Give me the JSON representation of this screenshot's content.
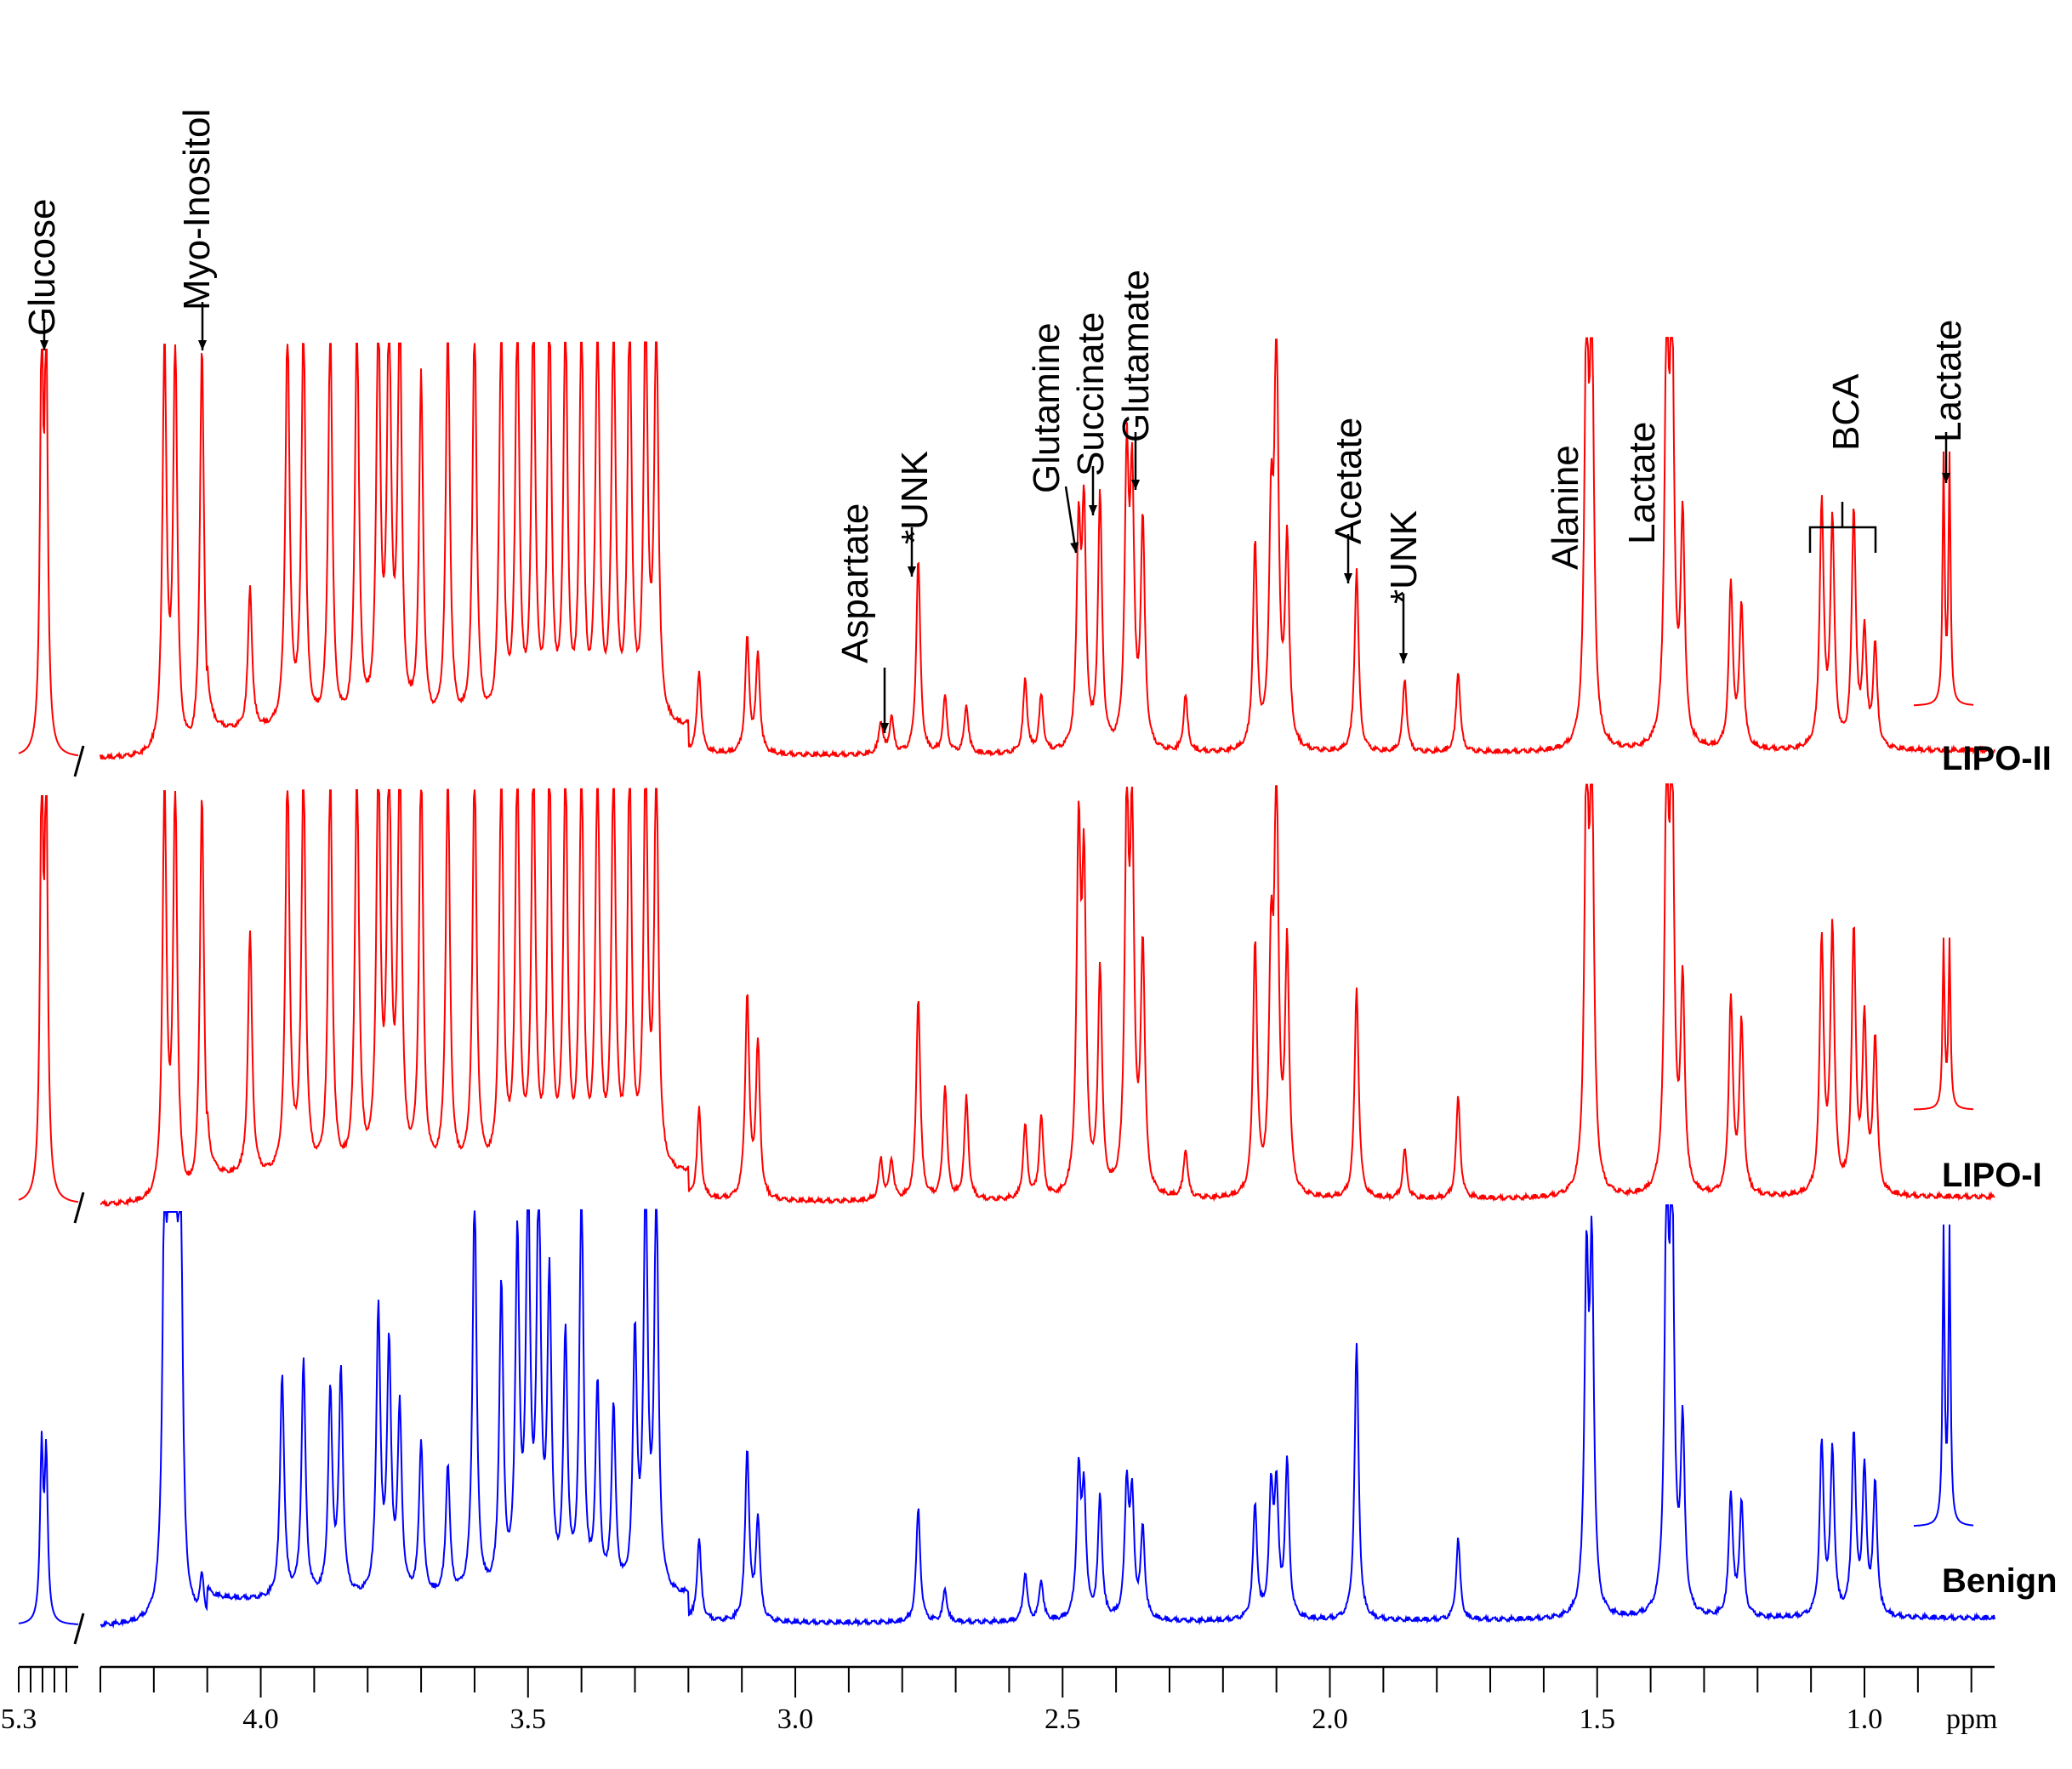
{
  "chart_data": {
    "type": "line",
    "title": "",
    "xlabel": "ppm",
    "ylabel": "",
    "xlim": [
      5.3,
      0.7
    ],
    "x_reversed": true,
    "axis_break": [
      5.3,
      4.3
    ],
    "grid": false,
    "colors": {
      "LIPO-II": "#ff0000",
      "LIPO-I": "#ff0000",
      "Benign": "#0000ff",
      "axis": "#000000"
    },
    "tick_labels": [
      "5.3",
      "4.0",
      "3.5",
      "3.0",
      "2.5",
      "2.0",
      "1.5",
      "1.0"
    ],
    "tick_values": [
      5.3,
      4.0,
      3.5,
      3.0,
      2.5,
      2.0,
      1.5,
      1.0
    ],
    "series": [
      {
        "name": "LIPO-II",
        "baseline": 0.02,
        "values_note": "",
        "peaks": [
          {
            "x": 5.25,
            "y": 1.0
          },
          {
            "x": 5.24,
            "y": 1.0
          },
          {
            "x": 4.18,
            "y": 1.0
          },
          {
            "x": 4.16,
            "y": 1.0
          },
          {
            "x": 4.11,
            "y": 1.0
          },
          {
            "x": 4.02,
            "y": 0.35
          },
          {
            "x": 3.95,
            "y": 1.0
          },
          {
            "x": 3.92,
            "y": 1.0
          },
          {
            "x": 3.87,
            "y": 1.0
          },
          {
            "x": 3.82,
            "y": 1.0
          },
          {
            "x": 3.78,
            "y": 1.0
          },
          {
            "x": 3.76,
            "y": 1.0
          },
          {
            "x": 3.74,
            "y": 1.0
          },
          {
            "x": 3.7,
            "y": 0.85
          },
          {
            "x": 3.65,
            "y": 1.0
          },
          {
            "x": 3.6,
            "y": 1.0
          },
          {
            "x": 3.55,
            "y": 1.0
          },
          {
            "x": 3.52,
            "y": 1.0
          },
          {
            "x": 3.49,
            "y": 1.0
          },
          {
            "x": 3.46,
            "y": 1.0
          },
          {
            "x": 3.43,
            "y": 1.0
          },
          {
            "x": 3.4,
            "y": 1.0
          },
          {
            "x": 3.37,
            "y": 1.0
          },
          {
            "x": 3.34,
            "y": 1.0
          },
          {
            "x": 3.31,
            "y": 1.0
          },
          {
            "x": 3.28,
            "y": 1.0
          },
          {
            "x": 3.26,
            "y": 1.0
          },
          {
            "x": 3.18,
            "y": 0.2
          },
          {
            "x": 3.09,
            "y": 0.28
          },
          {
            "x": 3.07,
            "y": 0.24
          },
          {
            "x": 2.84,
            "y": 0.08
          },
          {
            "x": 2.82,
            "y": 0.09
          },
          {
            "x": 2.77,
            "y": 0.48
          },
          {
            "x": 2.72,
            "y": 0.14
          },
          {
            "x": 2.68,
            "y": 0.12
          },
          {
            "x": 2.57,
            "y": 0.18
          },
          {
            "x": 2.54,
            "y": 0.14
          },
          {
            "x": 2.47,
            "y": 0.52
          },
          {
            "x": 2.46,
            "y": 0.56
          },
          {
            "x": 2.43,
            "y": 0.62
          },
          {
            "x": 2.38,
            "y": 0.68
          },
          {
            "x": 2.37,
            "y": 0.62
          },
          {
            "x": 2.35,
            "y": 0.55
          },
          {
            "x": 2.27,
            "y": 0.14
          },
          {
            "x": 2.14,
            "y": 0.5
          },
          {
            "x": 2.11,
            "y": 0.52
          },
          {
            "x": 2.1,
            "y": 1.0
          },
          {
            "x": 2.08,
            "y": 0.5
          },
          {
            "x": 1.95,
            "y": 0.45
          },
          {
            "x": 1.86,
            "y": 0.18
          },
          {
            "x": 1.76,
            "y": 0.2
          },
          {
            "x": 1.52,
            "y": 1.0
          },
          {
            "x": 1.51,
            "y": 1.0
          },
          {
            "x": 1.37,
            "y": 1.0
          },
          {
            "x": 1.36,
            "y": 1.0
          },
          {
            "x": 1.34,
            "y": 0.55
          },
          {
            "x": 1.25,
            "y": 0.4
          },
          {
            "x": 1.23,
            "y": 0.35
          },
          {
            "x": 1.08,
            "y": 0.6
          },
          {
            "x": 1.06,
            "y": 0.55
          },
          {
            "x": 1.02,
            "y": 0.58
          },
          {
            "x": 1.0,
            "y": 0.28
          },
          {
            "x": 0.98,
            "y": 0.25
          },
          {
            "x": 0.85,
            "y": 0.72
          },
          {
            "x": 0.84,
            "y": 0.72
          }
        ]
      },
      {
        "name": "LIPO-I",
        "baseline": 0.02,
        "peaks": [
          {
            "x": 5.25,
            "y": 1.0
          },
          {
            "x": 5.24,
            "y": 1.0
          },
          {
            "x": 4.18,
            "y": 1.0
          },
          {
            "x": 4.16,
            "y": 1.0
          },
          {
            "x": 4.11,
            "y": 1.0
          },
          {
            "x": 4.02,
            "y": 0.6
          },
          {
            "x": 3.95,
            "y": 1.0
          },
          {
            "x": 3.92,
            "y": 1.0
          },
          {
            "x": 3.87,
            "y": 1.0
          },
          {
            "x": 3.82,
            "y": 1.0
          },
          {
            "x": 3.78,
            "y": 1.0
          },
          {
            "x": 3.76,
            "y": 1.0
          },
          {
            "x": 3.74,
            "y": 1.0
          },
          {
            "x": 3.7,
            "y": 1.0
          },
          {
            "x": 3.65,
            "y": 1.0
          },
          {
            "x": 3.6,
            "y": 1.0
          },
          {
            "x": 3.55,
            "y": 1.0
          },
          {
            "x": 3.52,
            "y": 1.0
          },
          {
            "x": 3.49,
            "y": 1.0
          },
          {
            "x": 3.46,
            "y": 1.0
          },
          {
            "x": 3.43,
            "y": 1.0
          },
          {
            "x": 3.4,
            "y": 1.0
          },
          {
            "x": 3.37,
            "y": 1.0
          },
          {
            "x": 3.34,
            "y": 1.0
          },
          {
            "x": 3.31,
            "y": 1.0
          },
          {
            "x": 3.28,
            "y": 1.0
          },
          {
            "x": 3.26,
            "y": 1.0
          },
          {
            "x": 3.18,
            "y": 0.22
          },
          {
            "x": 3.09,
            "y": 0.5
          },
          {
            "x": 3.07,
            "y": 0.38
          },
          {
            "x": 2.84,
            "y": 0.1
          },
          {
            "x": 2.82,
            "y": 0.1
          },
          {
            "x": 2.77,
            "y": 0.5
          },
          {
            "x": 2.72,
            "y": 0.28
          },
          {
            "x": 2.68,
            "y": 0.25
          },
          {
            "x": 2.57,
            "y": 0.18
          },
          {
            "x": 2.54,
            "y": 0.2
          },
          {
            "x": 2.47,
            "y": 0.85
          },
          {
            "x": 2.46,
            "y": 0.75
          },
          {
            "x": 2.43,
            "y": 0.55
          },
          {
            "x": 2.38,
            "y": 0.9
          },
          {
            "x": 2.37,
            "y": 0.85
          },
          {
            "x": 2.35,
            "y": 0.6
          },
          {
            "x": 2.27,
            "y": 0.12
          },
          {
            "x": 2.14,
            "y": 0.62
          },
          {
            "x": 2.11,
            "y": 0.55
          },
          {
            "x": 2.1,
            "y": 1.0
          },
          {
            "x": 2.08,
            "y": 0.6
          },
          {
            "x": 1.95,
            "y": 0.52
          },
          {
            "x": 1.86,
            "y": 0.12
          },
          {
            "x": 1.76,
            "y": 0.25
          },
          {
            "x": 1.52,
            "y": 1.0
          },
          {
            "x": 1.51,
            "y": 1.0
          },
          {
            "x": 1.37,
            "y": 1.0
          },
          {
            "x": 1.36,
            "y": 1.0
          },
          {
            "x": 1.34,
            "y": 0.5
          },
          {
            "x": 1.25,
            "y": 0.48
          },
          {
            "x": 1.23,
            "y": 0.42
          },
          {
            "x": 1.08,
            "y": 0.62
          },
          {
            "x": 1.06,
            "y": 0.65
          },
          {
            "x": 1.02,
            "y": 0.64
          },
          {
            "x": 1.0,
            "y": 0.42
          },
          {
            "x": 0.98,
            "y": 0.38
          },
          {
            "x": 0.85,
            "y": 0.78
          },
          {
            "x": 0.84,
            "y": 0.78
          }
        ]
      },
      {
        "name": "Benign",
        "baseline": 0.02,
        "peaks": [
          {
            "x": 5.25,
            "y": 0.42
          },
          {
            "x": 5.24,
            "y": 0.4
          },
          {
            "x": 4.18,
            "y": 0.95
          },
          {
            "x": 4.17,
            "y": 1.0
          },
          {
            "x": 4.16,
            "y": 1.0
          },
          {
            "x": 4.15,
            "y": 0.95
          },
          {
            "x": 4.11,
            "y": 0.1
          },
          {
            "x": 3.96,
            "y": 0.55
          },
          {
            "x": 3.92,
            "y": 0.58
          },
          {
            "x": 3.87,
            "y": 0.5
          },
          {
            "x": 3.85,
            "y": 0.55
          },
          {
            "x": 3.78,
            "y": 0.7
          },
          {
            "x": 3.76,
            "y": 0.6
          },
          {
            "x": 3.74,
            "y": 0.45
          },
          {
            "x": 3.7,
            "y": 0.38
          },
          {
            "x": 3.65,
            "y": 0.32
          },
          {
            "x": 3.6,
            "y": 1.0
          },
          {
            "x": 3.55,
            "y": 0.75
          },
          {
            "x": 3.52,
            "y": 0.85
          },
          {
            "x": 3.5,
            "y": 1.0
          },
          {
            "x": 3.48,
            "y": 1.0
          },
          {
            "x": 3.46,
            "y": 0.75
          },
          {
            "x": 3.43,
            "y": 0.62
          },
          {
            "x": 3.4,
            "y": 1.0
          },
          {
            "x": 3.37,
            "y": 0.5
          },
          {
            "x": 3.34,
            "y": 0.45
          },
          {
            "x": 3.3,
            "y": 0.62
          },
          {
            "x": 3.28,
            "y": 1.0
          },
          {
            "x": 3.26,
            "y": 1.0
          },
          {
            "x": 3.18,
            "y": 0.2
          },
          {
            "x": 3.09,
            "y": 0.42
          },
          {
            "x": 3.07,
            "y": 0.25
          },
          {
            "x": 2.77,
            "y": 0.28
          },
          {
            "x": 2.72,
            "y": 0.08
          },
          {
            "x": 2.57,
            "y": 0.12
          },
          {
            "x": 2.54,
            "y": 0.1
          },
          {
            "x": 2.47,
            "y": 0.35
          },
          {
            "x": 2.46,
            "y": 0.3
          },
          {
            "x": 2.43,
            "y": 0.3
          },
          {
            "x": 2.38,
            "y": 0.32
          },
          {
            "x": 2.37,
            "y": 0.28
          },
          {
            "x": 2.35,
            "y": 0.22
          },
          {
            "x": 2.14,
            "y": 0.28
          },
          {
            "x": 2.11,
            "y": 0.3
          },
          {
            "x": 2.1,
            "y": 0.3
          },
          {
            "x": 2.08,
            "y": 0.38
          },
          {
            "x": 1.95,
            "y": 0.68
          },
          {
            "x": 1.76,
            "y": 0.2
          },
          {
            "x": 1.52,
            "y": 0.82
          },
          {
            "x": 1.51,
            "y": 0.85
          },
          {
            "x": 1.37,
            "y": 1.0
          },
          {
            "x": 1.36,
            "y": 1.0
          },
          {
            "x": 1.34,
            "y": 0.45
          },
          {
            "x": 1.25,
            "y": 0.3
          },
          {
            "x": 1.23,
            "y": 0.28
          },
          {
            "x": 1.08,
            "y": 0.42
          },
          {
            "x": 1.06,
            "y": 0.4
          },
          {
            "x": 1.02,
            "y": 0.44
          },
          {
            "x": 1.0,
            "y": 0.35
          },
          {
            "x": 0.98,
            "y": 0.32
          },
          {
            "x": 0.85,
            "y": 0.95
          },
          {
            "x": 0.84,
            "y": 0.95
          }
        ]
      }
    ],
    "annotations": [
      {
        "text": "Glucose",
        "x": 5.24,
        "series": "LIPO-II"
      },
      {
        "text": "Myo-Inositol",
        "x": 4.11,
        "series": "LIPO-II"
      },
      {
        "text": "Aspartate",
        "x": 2.82,
        "series": "LIPO-II"
      },
      {
        "text": "*UNK",
        "x": 2.77,
        "series": "LIPO-II"
      },
      {
        "text": "Glutamine",
        "x": 2.47,
        "series": "LIPO-II"
      },
      {
        "text": "Succinate",
        "x": 2.43,
        "series": "LIPO-II"
      },
      {
        "text": "Glutamate",
        "x": 2.36,
        "series": "LIPO-II"
      },
      {
        "text": "Acetate",
        "x": 1.95,
        "series": "LIPO-II"
      },
      {
        "text": "*UNK",
        "x": 1.86,
        "series": "LIPO-II"
      },
      {
        "text": "Alanine",
        "x": 1.51,
        "series": "LIPO-II"
      },
      {
        "text": "Lactate",
        "x": 1.36,
        "series": "LIPO-II"
      },
      {
        "text": "BCA",
        "x": 1.03,
        "series": "LIPO-II"
      },
      {
        "text": "Lactate",
        "x": 0.85,
        "series": "LIPO-II"
      }
    ]
  }
}
